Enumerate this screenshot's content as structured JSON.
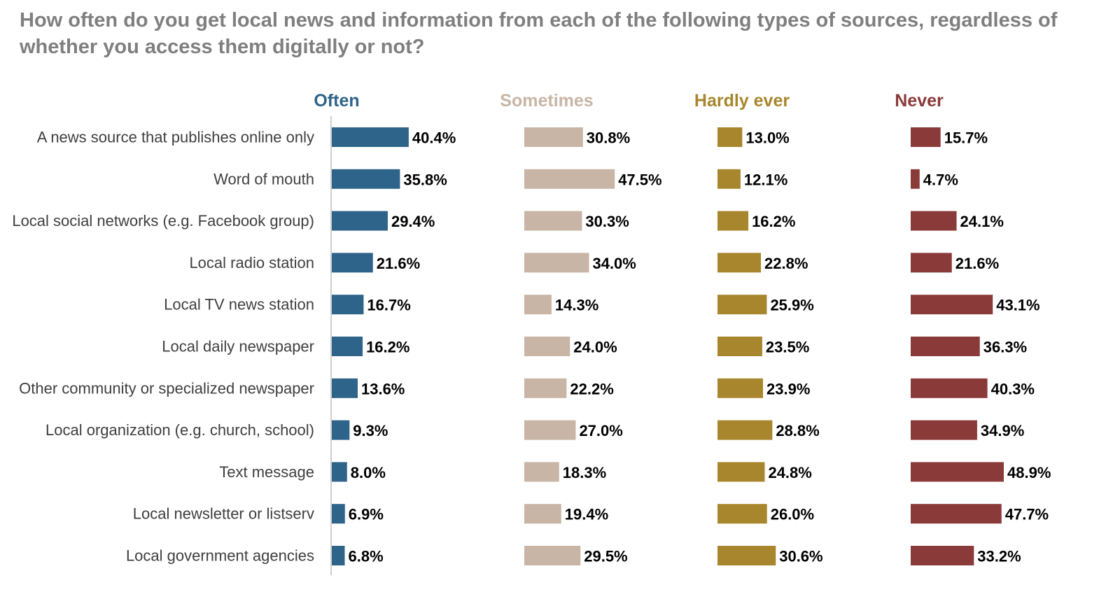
{
  "chart_data": {
    "type": "bar",
    "orientation": "horizontal",
    "title": "How often do you get local news and information from each of the following types of sources, regardless of whether you access them digitally or not?",
    "categories": [
      "A news source that publishes online only",
      "Word of mouth",
      "Local social networks (e.g. Facebook group)",
      "Local radio station",
      "Local TV news station",
      "Local daily newspaper",
      "Other community or specialized newspaper",
      "Local organization (e.g. church, school)",
      "Text message",
      "Local newsletter or listserv",
      "Local government agencies"
    ],
    "series": [
      {
        "name": "Often",
        "color": "#2e6489",
        "values": [
          40.4,
          35.8,
          29.4,
          21.6,
          16.7,
          16.2,
          13.6,
          9.3,
          8.0,
          6.9,
          6.8
        ],
        "labels": [
          "40.4%",
          "35.8%",
          "29.4%",
          "21.6%",
          "16.7%",
          "16.2%",
          "13.6%",
          "9.3%",
          "8.0%",
          "6.9%",
          "6.8%"
        ]
      },
      {
        "name": "Sometimes",
        "color": "#c8b5a6",
        "values": [
          30.8,
          47.5,
          30.3,
          34.0,
          14.3,
          24.0,
          22.2,
          27.0,
          18.3,
          19.4,
          29.5
        ],
        "labels": [
          "30.8%",
          "47.5%",
          "30.3%",
          "34.0%",
          "14.3%",
          "24.0%",
          "22.2%",
          "27.0%",
          "18.3%",
          "19.4%",
          "29.5%"
        ]
      },
      {
        "name": "Hardly ever",
        "color": "#a8862d",
        "values": [
          13.0,
          12.1,
          16.2,
          22.8,
          25.9,
          23.5,
          23.9,
          28.8,
          24.8,
          26.0,
          30.6
        ],
        "labels": [
          "13.0%",
          "12.1%",
          "16.2%",
          "22.8%",
          "25.9%",
          "23.5%",
          "23.9%",
          "28.8%",
          "24.8%",
          "26.0%",
          "30.6%"
        ]
      },
      {
        "name": "Never",
        "color": "#8b3a3a",
        "values": [
          15.7,
          4.7,
          24.1,
          21.6,
          43.1,
          36.3,
          40.3,
          34.9,
          48.9,
          47.7,
          33.2
        ],
        "labels": [
          "15.7%",
          "4.7%",
          "24.1%",
          "21.6%",
          "43.1%",
          "36.3%",
          "40.3%",
          "34.9%",
          "48.9%",
          "47.7%",
          "33.2%"
        ]
      }
    ],
    "axis_color": "#bfbfbf",
    "grid": false,
    "legend": "column headers above each panel"
  }
}
